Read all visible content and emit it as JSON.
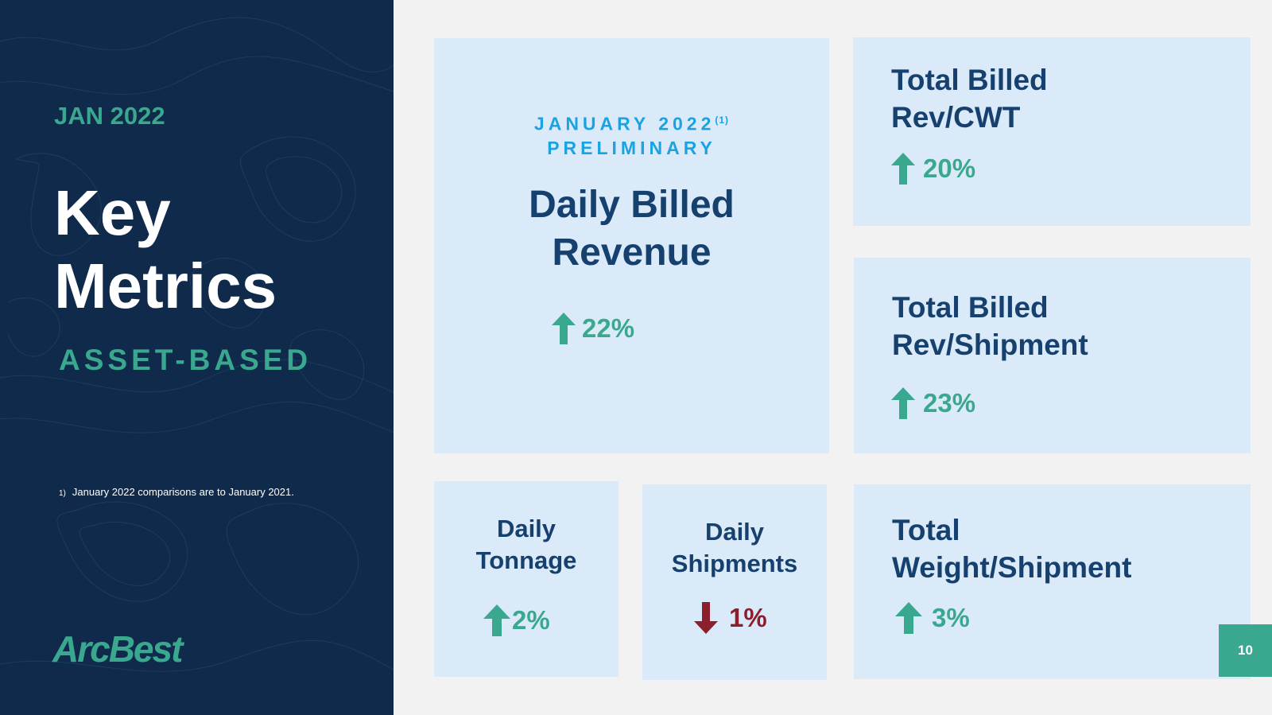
{
  "sidebar": {
    "period": "JAN 2022",
    "title_line1": "Key",
    "title_line2": "Metrics",
    "subtitle": "ASSET-BASED",
    "footnote_marker": "1)",
    "footnote": "January 2022 comparisons are to January 2021.",
    "logo": "ArcBest"
  },
  "main_card": {
    "header_line1": "JANUARY 2022",
    "header_sup": "(1)",
    "header_line2": "PRELIMINARY",
    "label_line1": "Daily Billed",
    "label_line2": "Revenue",
    "value": "22%",
    "direction": "up"
  },
  "metrics": {
    "rev_cwt": {
      "label_line1": "Total Billed",
      "label_line2": "Rev/CWT",
      "value": "20%",
      "direction": "up"
    },
    "rev_shipment": {
      "label_line1": "Total Billed",
      "label_line2": "Rev/Shipment",
      "value": "23%",
      "direction": "up"
    },
    "tonnage": {
      "label_line1": "Daily",
      "label_line2": "Tonnage",
      "value": "2%",
      "direction": "up"
    },
    "shipments": {
      "label_line1": "Daily",
      "label_line2": "Shipments",
      "value": "1%",
      "direction": "down"
    },
    "weight_shipment": {
      "label_line1": "Total",
      "label_line2": "Weight/Shipment",
      "value": "3%",
      "direction": "up"
    }
  },
  "colors": {
    "navy": "#0f2a4a",
    "teal": "#3aa88f",
    "card_bg": "#dbeaf9",
    "label_blue": "#16406e",
    "header_cyan": "#1aa3e0",
    "down_red": "#8b1f2e"
  },
  "page_number": "10"
}
